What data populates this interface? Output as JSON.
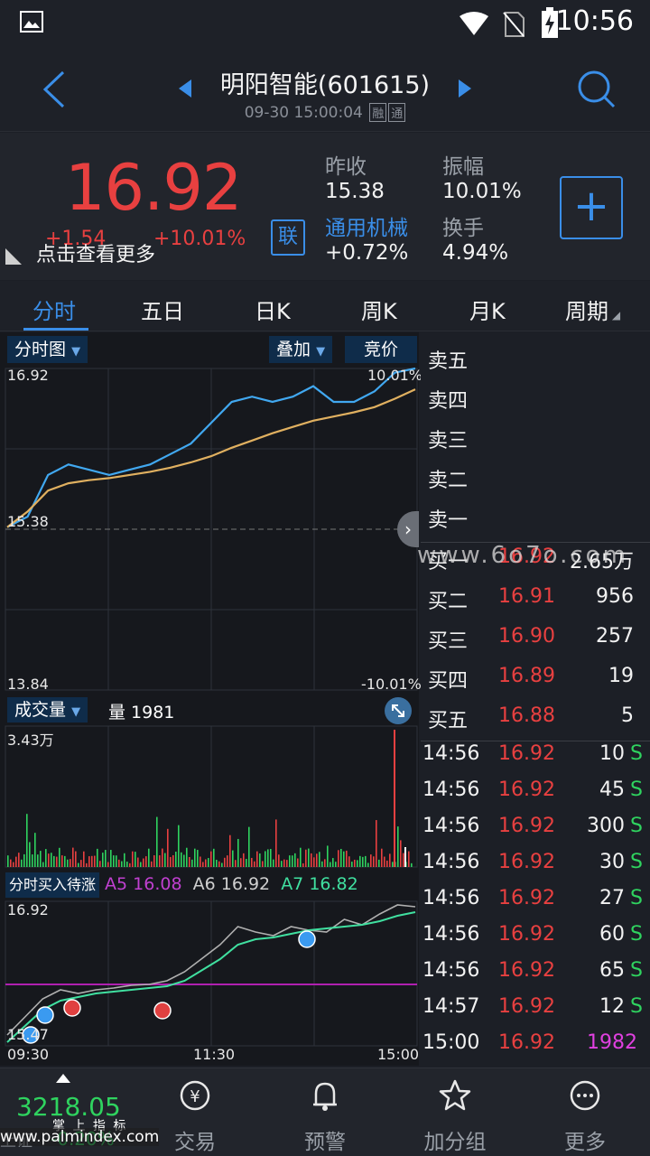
{
  "status": {
    "time": "10:56"
  },
  "header": {
    "title": "明阳智能(601615)",
    "datetime": "09-30 15:00:04",
    "badge1": "融",
    "badge2": "通"
  },
  "quote": {
    "price": "16.92",
    "change_abs": "+1.54",
    "change_pct": "+10.01%",
    "more_tip": "点击查看更多",
    "lian_label": "联",
    "prev_close_label": "昨收",
    "prev_close": "15.38",
    "amplitude_label": "振幅",
    "amplitude": "10.01%",
    "sector_label": "通用机械",
    "sector_change": "+0.72%",
    "turnover_label": "换手",
    "turnover": "4.94%",
    "add_label": "+"
  },
  "tabs": [
    {
      "label": "分时"
    },
    {
      "label": "五日"
    },
    {
      "label": "日K"
    },
    {
      "label": "周K"
    },
    {
      "label": "月K"
    },
    {
      "label": "周期"
    }
  ],
  "chart": {
    "dropdown1": "分时图",
    "dropdown2": "叠加",
    "dropdown3": "竞价",
    "price_high": "16.92",
    "pct_high": "10.01%",
    "price_prev": "15.38",
    "price_low": "13.84",
    "pct_low": "-10.01%",
    "volume_dropdown": "成交量",
    "volume_label": "量 1981",
    "volume_max": "3.43万",
    "indicator_label": "分时买入待涨",
    "a5_label": "A5",
    "a5_val": "16.08",
    "a6_label": "A6",
    "a6_val": "16.92",
    "a7_label": "A7",
    "a7_val": "16.82",
    "ind_high": "16.92",
    "ind_low": "15.47",
    "time_start": "09:30",
    "time_mid": "11:30",
    "time_end": "15:00"
  },
  "chart_data": [
    {
      "type": "line",
      "title": "",
      "x_labels": [
        "09:30",
        "11:30",
        "15:00"
      ],
      "ylim": [
        13.84,
        16.92
      ],
      "series": [
        {
          "name": "",
          "color": "#41a8f0",
          "values": [
            15.4,
            15.5,
            15.9,
            16.0,
            15.95,
            15.9,
            15.95,
            16.0,
            16.1,
            16.2,
            16.4,
            16.6,
            16.65,
            16.6,
            16.65,
            16.75,
            16.6,
            16.6,
            16.7,
            16.88,
            16.92
          ]
        },
        {
          "name": "",
          "color": "#e0b060",
          "values": [
            15.4,
            15.55,
            15.75,
            15.82,
            15.85,
            15.87,
            15.9,
            15.93,
            15.97,
            16.02,
            16.08,
            16.16,
            16.23,
            16.3,
            16.36,
            16.42,
            16.46,
            16.5,
            16.55,
            16.63,
            16.72
          ]
        }
      ]
    }
  ],
  "book": {
    "asks": [
      {
        "label": "卖五"
      },
      {
        "label": "卖四"
      },
      {
        "label": "卖三"
      },
      {
        "label": "卖二"
      },
      {
        "label": "卖一"
      }
    ],
    "bids": [
      {
        "label": "买一",
        "price": "16.92",
        "vol": "2.65万"
      },
      {
        "label": "买二",
        "price": "16.91",
        "vol": "956"
      },
      {
        "label": "买三",
        "price": "16.90",
        "vol": "257"
      },
      {
        "label": "买四",
        "price": "16.89",
        "vol": "19"
      },
      {
        "label": "买五",
        "price": "16.88",
        "vol": "5"
      }
    ],
    "trades": [
      {
        "time": "14:56",
        "price": "16.92",
        "vol": "10",
        "side": "S"
      },
      {
        "time": "14:56",
        "price": "16.92",
        "vol": "45",
        "side": "S"
      },
      {
        "time": "14:56",
        "price": "16.92",
        "vol": "300",
        "side": "S"
      },
      {
        "time": "14:56",
        "price": "16.92",
        "vol": "30",
        "side": "S"
      },
      {
        "time": "14:56",
        "price": "16.92",
        "vol": "27",
        "side": "S"
      },
      {
        "time": "14:56",
        "price": "16.92",
        "vol": "60",
        "side": "S"
      },
      {
        "time": "14:56",
        "price": "16.92",
        "vol": "65",
        "side": "S"
      },
      {
        "time": "14:57",
        "price": "16.92",
        "vol": "12",
        "side": "S"
      },
      {
        "time": "15:00",
        "price": "16.92",
        "vol": "1982",
        "side": ""
      }
    ]
  },
  "nav": {
    "index_value": "3218.05",
    "index_name": "上证",
    "index_pct": "-0.20%",
    "trade": "交易",
    "alert": "预警",
    "watchlist": "加分组",
    "more": "更多"
  },
  "watermark": {
    "site": "www.palmindex.com",
    "site_cn": "掌 上 指 标",
    "site2": "www.6o7o.com"
  }
}
